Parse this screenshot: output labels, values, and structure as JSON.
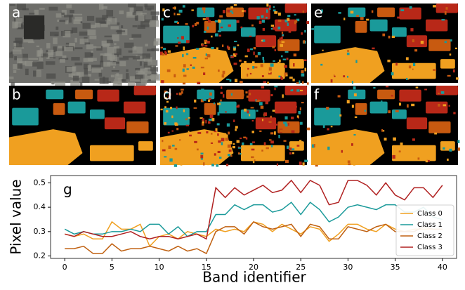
{
  "panels": [
    "a",
    "b",
    "c",
    "d",
    "e",
    "f"
  ],
  "chart_data": {
    "type": "line",
    "annotation": "g",
    "xlabel": "Band identifier",
    "ylabel": "Pixel value",
    "x": [
      0,
      1,
      2,
      3,
      4,
      5,
      6,
      7,
      8,
      9,
      10,
      11,
      12,
      13,
      14,
      15,
      16,
      17,
      18,
      19,
      20,
      21,
      22,
      23,
      24,
      25,
      26,
      27,
      28,
      29,
      30,
      31,
      32,
      33,
      34,
      35,
      36,
      37,
      38,
      39,
      40
    ],
    "series": [
      {
        "name": "Class 0",
        "color": "#f0a020",
        "values": [
          0.29,
          0.28,
          0.29,
          0.27,
          0.27,
          0.34,
          0.31,
          0.31,
          0.33,
          0.24,
          0.28,
          0.29,
          0.27,
          0.3,
          0.29,
          0.28,
          0.31,
          0.3,
          0.31,
          0.3,
          0.34,
          0.33,
          0.3,
          0.33,
          0.31,
          0.29,
          0.32,
          0.31,
          0.26,
          0.29,
          0.33,
          0.33,
          0.31,
          0.3,
          0.33,
          0.31,
          0.3,
          0.31,
          0.31,
          0.31,
          0.31
        ]
      },
      {
        "name": "Class 1",
        "color": "#1a9a9a",
        "values": [
          0.31,
          0.29,
          0.3,
          0.29,
          0.29,
          0.3,
          0.3,
          0.31,
          0.3,
          0.33,
          0.33,
          0.29,
          0.32,
          0.28,
          0.3,
          0.3,
          0.37,
          0.37,
          0.41,
          0.39,
          0.41,
          0.41,
          0.38,
          0.39,
          0.42,
          0.37,
          0.42,
          0.39,
          0.34,
          0.36,
          0.4,
          0.41,
          0.4,
          0.39,
          0.41,
          0.41,
          0.38,
          0.38,
          0.4,
          0.36,
          0.35
        ]
      },
      {
        "name": "Class 2",
        "color": "#c06010",
        "values": [
          0.23,
          0.23,
          0.24,
          0.21,
          0.21,
          0.25,
          0.22,
          0.23,
          0.23,
          0.24,
          0.23,
          0.22,
          0.24,
          0.22,
          0.23,
          0.21,
          0.3,
          0.32,
          0.32,
          0.29,
          0.34,
          0.32,
          0.31,
          0.32,
          0.33,
          0.28,
          0.33,
          0.32,
          0.27,
          0.27,
          0.32,
          0.31,
          0.3,
          0.32,
          0.33,
          0.3,
          0.3,
          0.3,
          0.32,
          0.31,
          0.31
        ]
      },
      {
        "name": "Class 3",
        "color": "#b02020",
        "values": [
          0.29,
          0.28,
          0.3,
          0.29,
          0.28,
          0.28,
          0.29,
          0.3,
          0.28,
          0.27,
          0.28,
          0.28,
          0.27,
          0.28,
          0.29,
          0.27,
          0.48,
          0.44,
          0.48,
          0.45,
          0.47,
          0.49,
          0.46,
          0.47,
          0.51,
          0.46,
          0.51,
          0.49,
          0.41,
          0.42,
          0.51,
          0.51,
          0.49,
          0.45,
          0.5,
          0.45,
          0.43,
          0.48,
          0.48,
          0.44,
          0.49
        ]
      }
    ],
    "xlim": [
      -1.5,
      41.5
    ],
    "ylim": [
      0.19,
      0.53
    ],
    "xticks": [
      0,
      5,
      10,
      15,
      20,
      25,
      30,
      35,
      40
    ],
    "yticks": [
      0.2,
      0.3,
      0.4,
      0.5
    ],
    "legend": "lower right"
  }
}
